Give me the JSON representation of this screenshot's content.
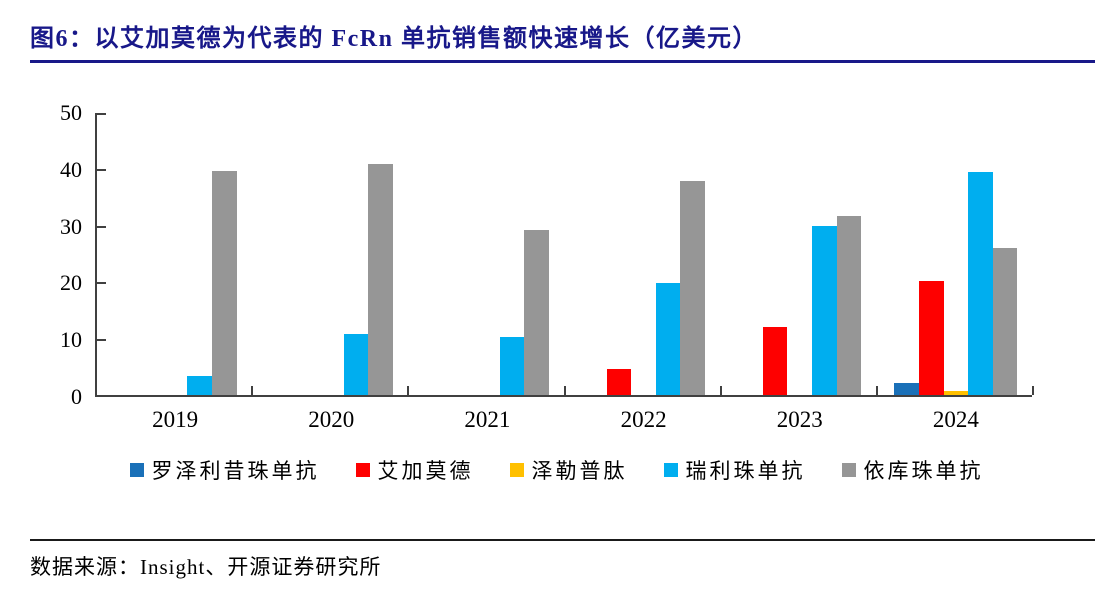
{
  "header": {
    "title": "图6：以艾加莫德为代表的 FcRn 单抗销售额快速增长（亿美元）",
    "accent_color": "#181889"
  },
  "footer": {
    "source": "数据来源：Insight、开源证券研究所"
  },
  "chart_data": {
    "type": "bar",
    "title": "以艾加莫德为代表的 FcRn 单抗销售额快速增长（亿美元）",
    "unit": "亿美元",
    "categories": [
      "2019",
      "2020",
      "2021",
      "2022",
      "2023",
      "2024"
    ],
    "series": [
      {
        "name": "罗泽利昔珠单抗",
        "color": "#1A70B8",
        "values": [
          0,
          0,
          0,
          0,
          0,
          2.1
        ]
      },
      {
        "name": "艾加莫德",
        "color": "#FE0000",
        "values": [
          0,
          0,
          0,
          4.5,
          11.9,
          20.1
        ]
      },
      {
        "name": "泽勒普肽",
        "color": "#FFC000",
        "values": [
          0,
          0,
          0,
          0,
          0,
          0.7
        ]
      },
      {
        "name": "瑞利珠单抗",
        "color": "#00AEEF",
        "values": [
          3.4,
          10.8,
          10.3,
          19.7,
          29.7,
          39.3
        ]
      },
      {
        "name": "依库珠单抗",
        "color": "#969696",
        "values": [
          39.5,
          40.6,
          29.1,
          37.6,
          31.5,
          25.9
        ]
      }
    ],
    "xlabel": "",
    "ylabel": "",
    "ylim": [
      0,
      50
    ],
    "yticks": [
      0,
      10,
      20,
      30,
      40,
      50
    ],
    "grid": false,
    "legend_position": "bottom",
    "axis_color": "#404040"
  }
}
